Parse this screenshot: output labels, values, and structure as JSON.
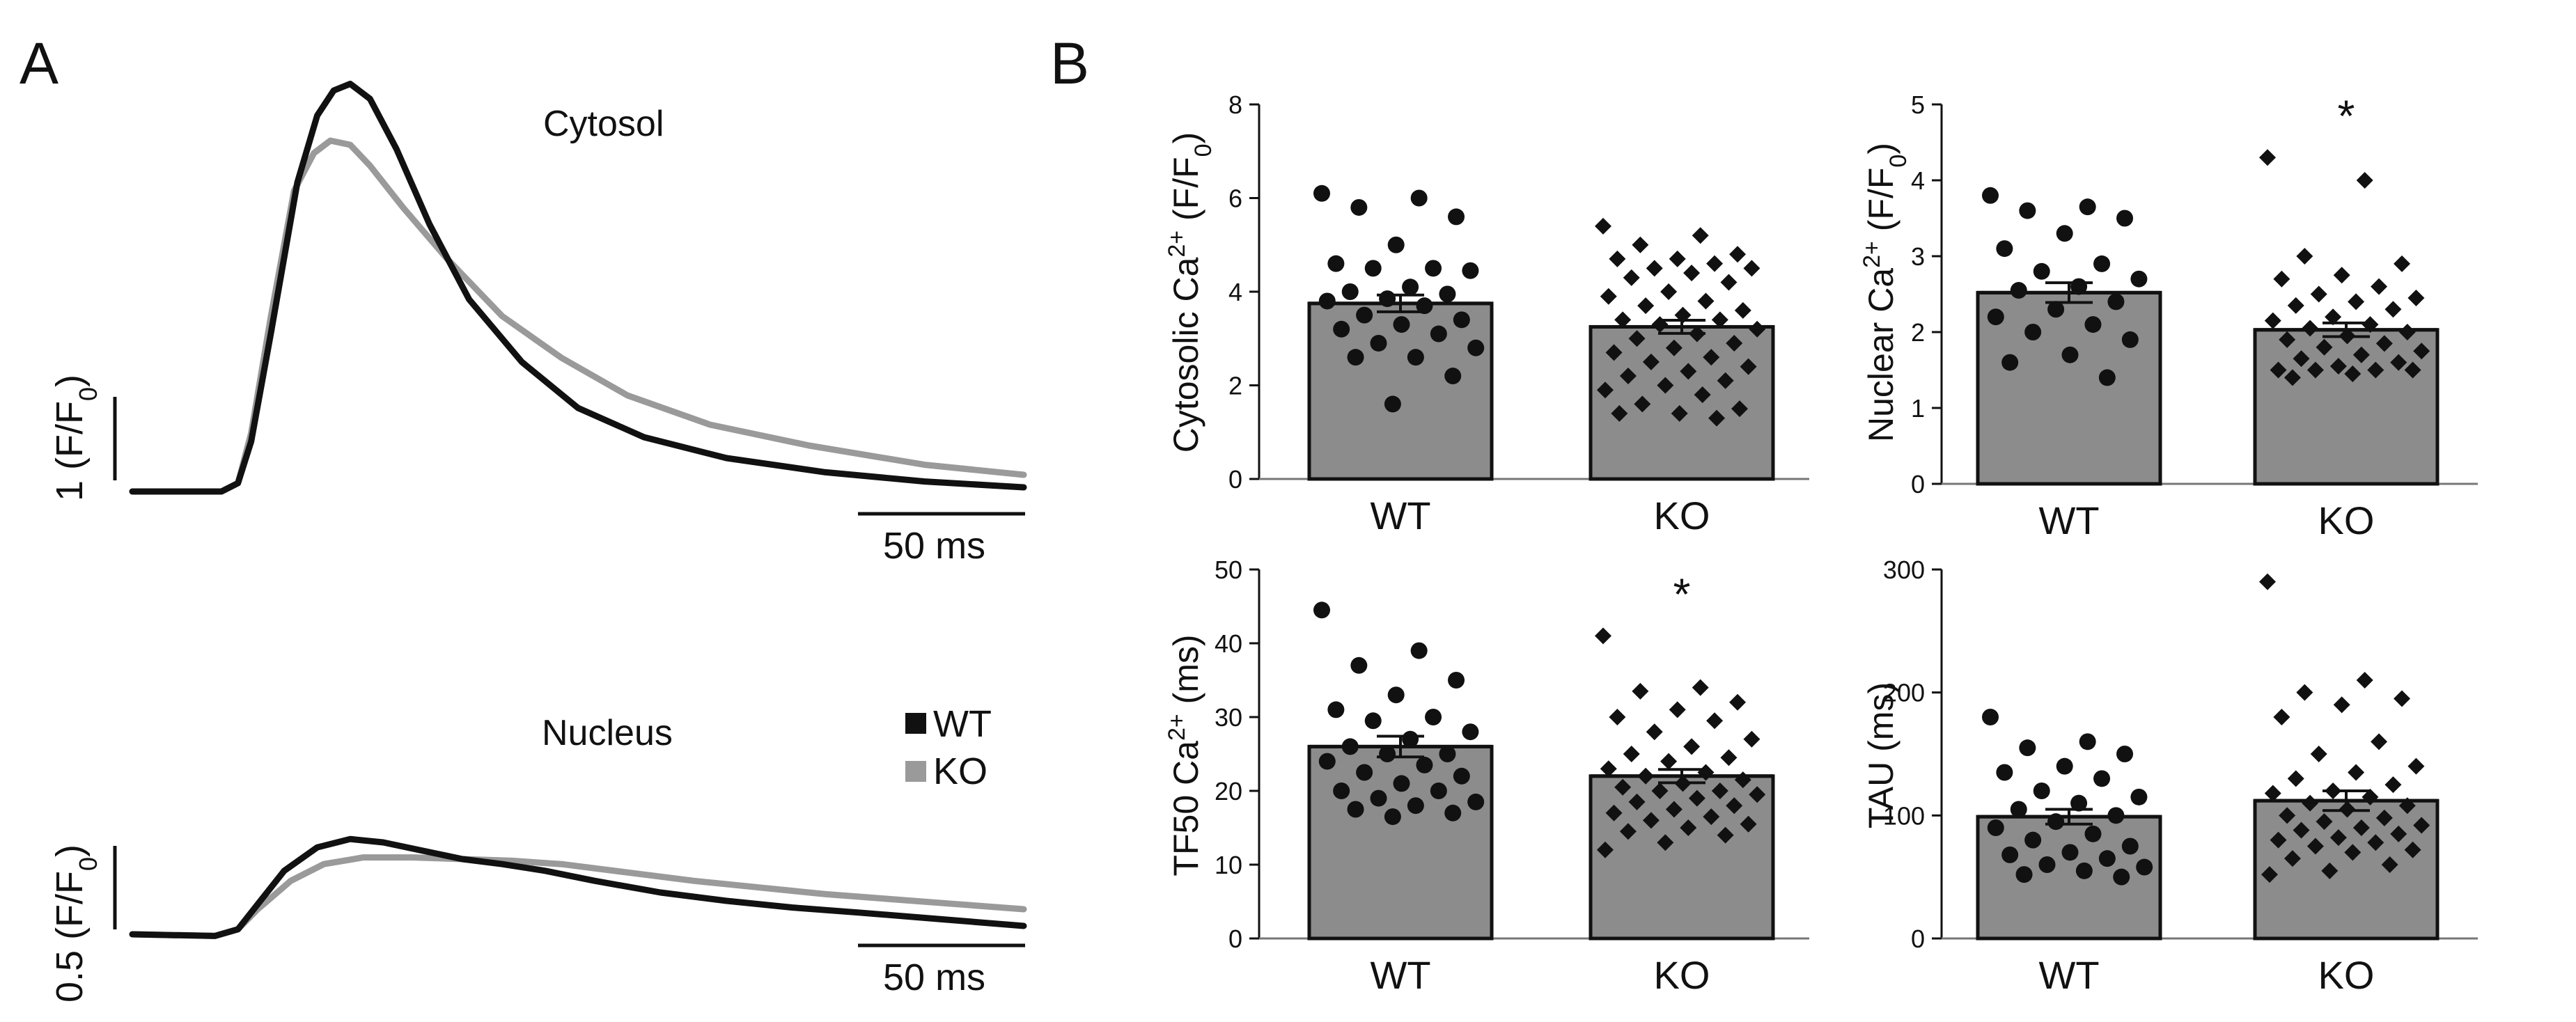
{
  "panels": {
    "a_label": "A",
    "b_label": "B"
  },
  "colors": {
    "wt": "#111111",
    "ko": "#9a9a9a",
    "bar_fill": "#8c8c8c",
    "bar_stroke": "#111111"
  },
  "legend": {
    "wt": "WT",
    "ko": "KO"
  },
  "chart_data": [
    {
      "id": "cytosol_trace",
      "type": "line",
      "title": "Cytosol",
      "x_unit": "ms",
      "y_unit": "F/F0",
      "scale_bar": {
        "x_label": "50 ms",
        "x_value": 50,
        "y_label_main": "1 (F/F",
        "y_label_sub": "0",
        "y_label_end": ")",
        "y_value": 1
      },
      "series": [
        {
          "name": "WT",
          "points": [
            [
              0,
              0.9
            ],
            [
              27,
              0.9
            ],
            [
              32,
              1.0
            ],
            [
              36,
              1.5
            ],
            [
              42,
              2.8
            ],
            [
              50,
              4.6
            ],
            [
              56,
              5.4
            ],
            [
              61,
              5.7
            ],
            [
              66,
              5.78
            ],
            [
              72,
              5.6
            ],
            [
              80,
              5.0
            ],
            [
              90,
              4.1
            ],
            [
              102,
              3.2
            ],
            [
              118,
              2.45
            ],
            [
              135,
              1.9
            ],
            [
              155,
              1.55
            ],
            [
              180,
              1.3
            ],
            [
              210,
              1.13
            ],
            [
              240,
              1.02
            ],
            [
              270,
              0.95
            ]
          ]
        },
        {
          "name": "KO",
          "points": [
            [
              0,
              0.9
            ],
            [
              27,
              0.9
            ],
            [
              32,
              1.0
            ],
            [
              36,
              1.6
            ],
            [
              42,
              3.0
            ],
            [
              49,
              4.5
            ],
            [
              55,
              4.95
            ],
            [
              60,
              5.1
            ],
            [
              66,
              5.05
            ],
            [
              72,
              4.8
            ],
            [
              82,
              4.3
            ],
            [
              95,
              3.7
            ],
            [
              112,
              3.0
            ],
            [
              130,
              2.5
            ],
            [
              150,
              2.05
            ],
            [
              175,
              1.7
            ],
            [
              205,
              1.45
            ],
            [
              240,
              1.22
            ],
            [
              270,
              1.1
            ]
          ]
        }
      ]
    },
    {
      "id": "nucleus_trace",
      "type": "line",
      "title": "Nucleus",
      "x_unit": "ms",
      "y_unit": "F/F0",
      "scale_bar": {
        "x_label": "50 ms",
        "x_value": 50,
        "y_label_main": "0.5 (F/F",
        "y_label_sub": "0",
        "y_label_end": ")",
        "y_value": 0.5
      },
      "series": [
        {
          "name": "WT",
          "points": [
            [
              0,
              1.0
            ],
            [
              25,
              0.99
            ],
            [
              32,
              1.03
            ],
            [
              38,
              1.18
            ],
            [
              46,
              1.38
            ],
            [
              56,
              1.52
            ],
            [
              66,
              1.57
            ],
            [
              76,
              1.55
            ],
            [
              88,
              1.5
            ],
            [
              100,
              1.45
            ],
            [
              112,
              1.42
            ],
            [
              125,
              1.38
            ],
            [
              140,
              1.32
            ],
            [
              160,
              1.25
            ],
            [
              180,
              1.2
            ],
            [
              200,
              1.16
            ],
            [
              220,
              1.13
            ],
            [
              245,
              1.09
            ],
            [
              270,
              1.05
            ]
          ]
        },
        {
          "name": "KO",
          "points": [
            [
              0,
              1.0
            ],
            [
              25,
              0.99
            ],
            [
              32,
              1.03
            ],
            [
              38,
              1.15
            ],
            [
              48,
              1.32
            ],
            [
              58,
              1.42
            ],
            [
              70,
              1.46
            ],
            [
              85,
              1.46
            ],
            [
              100,
              1.45
            ],
            [
              115,
              1.44
            ],
            [
              130,
              1.42
            ],
            [
              150,
              1.37
            ],
            [
              170,
              1.32
            ],
            [
              190,
              1.28
            ],
            [
              210,
              1.24
            ],
            [
              230,
              1.21
            ],
            [
              250,
              1.18
            ],
            [
              270,
              1.15
            ]
          ]
        }
      ]
    },
    {
      "id": "cytosolic_amp",
      "type": "bar",
      "categories": [
        "WT",
        "KO"
      ],
      "ylabel_main": "Cytosolic Ca",
      "ylabel_sup": "2+",
      "ylabel_rest": " (F/F",
      "ylabel_sub": "0",
      "ylabel_end": ")",
      "ylim": [
        0,
        8
      ],
      "yticks": [
        0,
        2,
        4,
        6,
        8
      ],
      "means": [
        3.75,
        3.25
      ],
      "sem": [
        0.18,
        0.14
      ],
      "significance": [
        "",
        ""
      ],
      "points": [
        [
          6.1,
          6.0,
          5.8,
          5.6,
          5.0,
          4.6,
          4.5,
          4.5,
          4.45,
          4.1,
          4.0,
          3.95,
          3.85,
          3.8,
          3.7,
          3.5,
          3.4,
          3.3,
          3.2,
          3.1,
          2.9,
          2.8,
          2.6,
          2.6,
          2.2,
          1.6
        ],
        [
          5.4,
          5.2,
          5.0,
          4.8,
          4.7,
          4.7,
          4.6,
          4.5,
          4.5,
          4.4,
          4.3,
          4.2,
          4.0,
          3.9,
          3.8,
          3.7,
          3.6,
          3.5,
          3.4,
          3.4,
          3.3,
          3.2,
          3.1,
          3.0,
          2.9,
          2.8,
          2.7,
          2.6,
          2.5,
          2.4,
          2.3,
          2.2,
          2.1,
          2.0,
          1.9,
          1.8,
          1.6,
          1.5,
          1.4,
          1.4,
          1.3
        ]
      ]
    },
    {
      "id": "nuclear_amp",
      "type": "bar",
      "categories": [
        "WT",
        "KO"
      ],
      "ylabel_main": "Nuclear Ca",
      "ylabel_sup": "2+",
      "ylabel_rest": " (F/F",
      "ylabel_sub": "0",
      "ylabel_end": ")",
      "ylim": [
        0,
        5
      ],
      "yticks": [
        0,
        1,
        2,
        3,
        4,
        5
      ],
      "means": [
        2.52,
        2.03
      ],
      "sem": [
        0.13,
        0.09
      ],
      "significance": [
        "",
        "*"
      ],
      "points": [
        [
          3.8,
          3.65,
          3.6,
          3.5,
          3.3,
          3.1,
          2.9,
          2.8,
          2.7,
          2.6,
          2.55,
          2.4,
          2.3,
          2.2,
          2.1,
          2.0,
          1.9,
          1.7,
          1.6,
          1.4
        ],
        [
          4.3,
          4.0,
          3.0,
          2.9,
          2.75,
          2.7,
          2.6,
          2.5,
          2.45,
          2.4,
          2.35,
          2.3,
          2.2,
          2.15,
          2.1,
          2.05,
          2.0,
          1.95,
          1.9,
          1.85,
          1.8,
          1.75,
          1.7,
          1.65,
          1.6,
          1.55,
          1.5,
          1.5,
          1.5,
          1.5,
          1.45,
          1.4
        ]
      ]
    },
    {
      "id": "tf50",
      "type": "bar",
      "categories": [
        "WT",
        "KO"
      ],
      "ylabel_main": "TF50 Ca",
      "ylabel_sup": "2+",
      "ylabel_rest": " (ms)",
      "ylabel_sub": "",
      "ylabel_end": "",
      "ylim": [
        0,
        50
      ],
      "yticks": [
        0,
        10,
        20,
        30,
        40,
        50
      ],
      "means": [
        26.0,
        22.0
      ],
      "sem": [
        1.4,
        0.9
      ],
      "significance": [
        "",
        "*"
      ],
      "points": [
        [
          44.5,
          39.0,
          37.0,
          35.0,
          33.0,
          31.0,
          30.0,
          29.5,
          28.0,
          27.0,
          26.0,
          25.0,
          25.0,
          24.0,
          23.5,
          22.5,
          22.0,
          21.0,
          20.0,
          20.0,
          19.0,
          18.5,
          18.0,
          17.5,
          17.0,
          16.5
        ],
        [
          41.0,
          34.0,
          33.5,
          32.0,
          31.0,
          30.0,
          29.5,
          28.0,
          27.0,
          26.0,
          25.0,
          24.5,
          24.0,
          23.0,
          22.5,
          22.0,
          21.5,
          21.0,
          20.5,
          20.0,
          20.0,
          19.5,
          19.0,
          18.5,
          18.0,
          17.5,
          17.0,
          16.5,
          16.0,
          15.5,
          15.0,
          14.5,
          14.0,
          13.0,
          12.0
        ]
      ]
    },
    {
      "id": "tau",
      "type": "bar",
      "categories": [
        "WT",
        "KO"
      ],
      "ylabel_main": "TAU (ms)",
      "ylabel_sup": "",
      "ylabel_rest": "",
      "ylabel_sub": "",
      "ylabel_end": "",
      "ylim": [
        0,
        300
      ],
      "yticks": [
        0,
        100,
        200,
        300
      ],
      "means": [
        99,
        112
      ],
      "sem": [
        6,
        8
      ],
      "significance": [
        "",
        ""
      ],
      "points": [
        [
          180,
          160,
          155,
          150,
          140,
          135,
          130,
          120,
          115,
          110,
          105,
          100,
          95,
          90,
          85,
          80,
          75,
          70,
          68,
          65,
          60,
          58,
          55,
          52,
          50
        ],
        [
          290,
          210,
          200,
          195,
          190,
          180,
          160,
          150,
          140,
          135,
          130,
          125,
          120,
          118,
          115,
          110,
          108,
          105,
          100,
          98,
          95,
          92,
          90,
          88,
          85,
          82,
          80,
          78,
          75,
          72,
          70,
          65,
          60,
          55,
          52
        ]
      ]
    }
  ]
}
